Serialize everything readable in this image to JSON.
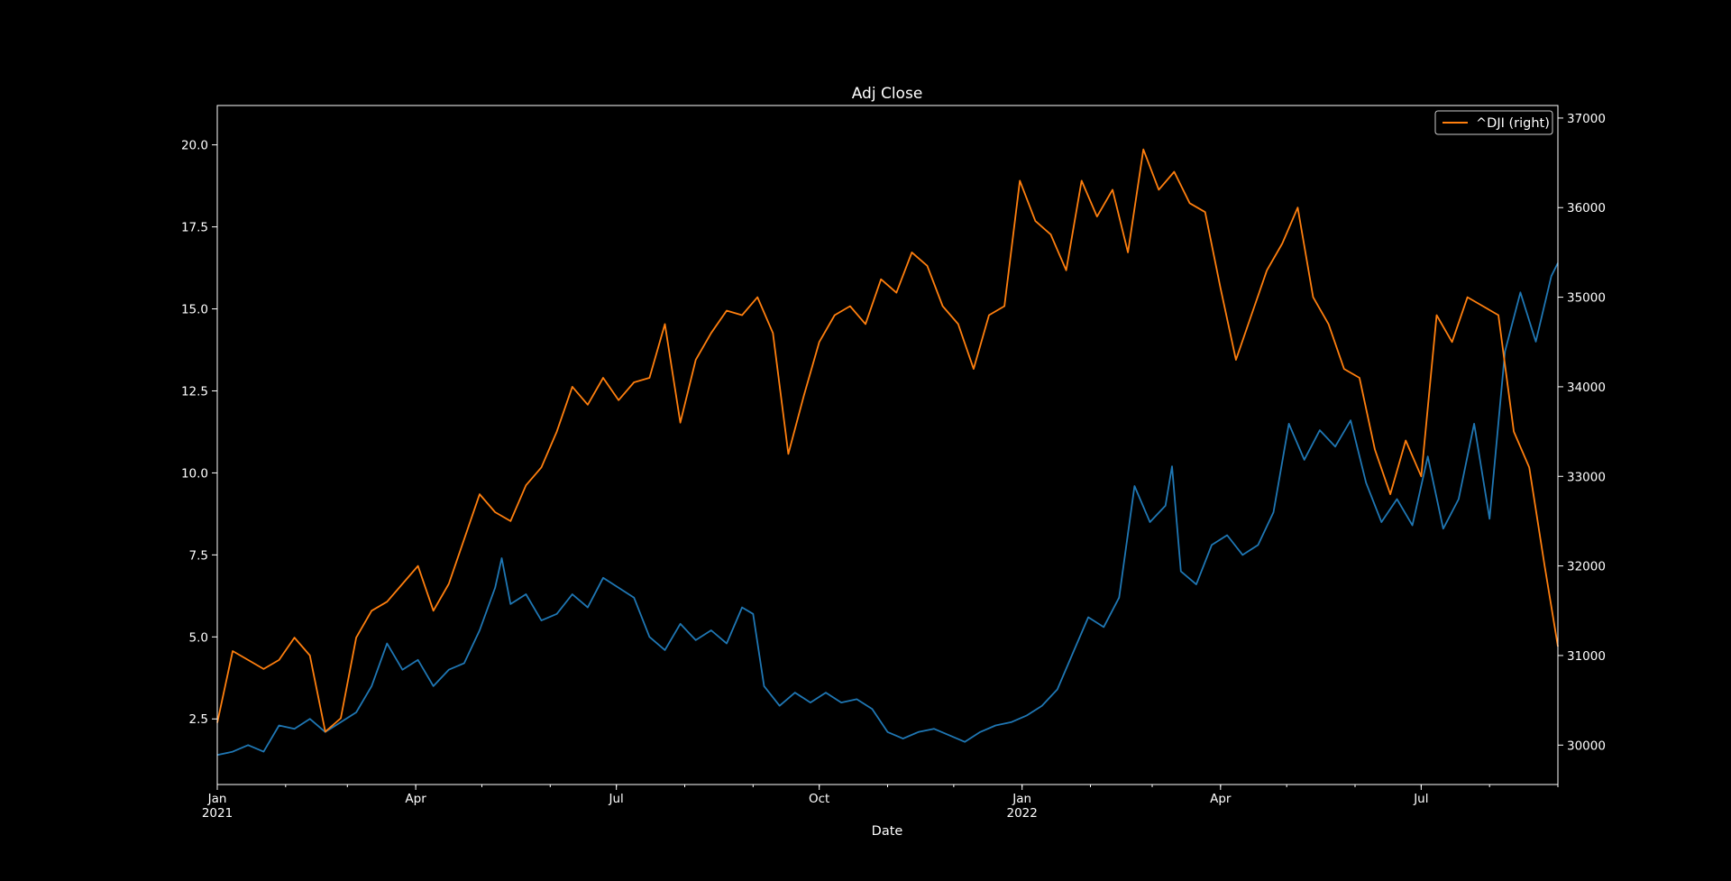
{
  "chart_data": {
    "type": "line",
    "title": "Adj Close",
    "xlabel": "Date",
    "x_range": [
      "2021-01-01",
      "2022-09-01"
    ],
    "x_ticks": [
      {
        "date": "2021-01-01",
        "label": "Jan",
        "sublabel": "2021"
      },
      {
        "date": "2021-04-01",
        "label": "Apr",
        "sublabel": ""
      },
      {
        "date": "2021-07-01",
        "label": "Jul",
        "sublabel": ""
      },
      {
        "date": "2021-10-01",
        "label": "Oct",
        "sublabel": ""
      },
      {
        "date": "2022-01-01",
        "label": "Jan",
        "sublabel": "2022"
      },
      {
        "date": "2022-04-01",
        "label": "Apr",
        "sublabel": ""
      },
      {
        "date": "2022-07-01",
        "label": "Jul",
        "sublabel": ""
      }
    ],
    "left_axis": {
      "ylim": [
        0.5,
        21.2
      ],
      "ticks": [
        2.5,
        5.0,
        7.5,
        10.0,
        12.5,
        15.0,
        17.5,
        20.0
      ],
      "tick_labels": [
        "2.5",
        "5.0",
        "7.5",
        "10.0",
        "12.5",
        "15.0",
        "17.5",
        "20.0"
      ]
    },
    "right_axis": {
      "ylim": [
        29560,
        37140
      ],
      "ticks": [
        30000,
        31000,
        32000,
        33000,
        34000,
        35000,
        36000,
        37000
      ],
      "tick_labels": [
        "30000",
        "31000",
        "32000",
        "33000",
        "34000",
        "35000",
        "36000",
        "37000"
      ]
    },
    "grid": false,
    "legend": {
      "placement": "top-right"
    },
    "series": [
      {
        "axis": "left",
        "color": "#1f77b4",
        "points": [
          [
            "2021-01-01",
            1.4
          ],
          [
            "2021-01-08",
            1.5
          ],
          [
            "2021-01-15",
            1.7
          ],
          [
            "2021-01-22",
            1.5
          ],
          [
            "2021-01-29",
            2.3
          ],
          [
            "2021-02-05",
            2.2
          ],
          [
            "2021-02-12",
            2.5
          ],
          [
            "2021-02-19",
            2.1
          ],
          [
            "2021-02-26",
            2.4
          ],
          [
            "2021-03-05",
            2.7
          ],
          [
            "2021-03-12",
            3.5
          ],
          [
            "2021-03-19",
            4.8
          ],
          [
            "2021-03-26",
            4.0
          ],
          [
            "2021-04-02",
            4.3
          ],
          [
            "2021-04-09",
            3.5
          ],
          [
            "2021-04-16",
            4.0
          ],
          [
            "2021-04-23",
            4.2
          ],
          [
            "2021-04-30",
            5.2
          ],
          [
            "2021-05-07",
            6.5
          ],
          [
            "2021-05-10",
            7.4
          ],
          [
            "2021-05-14",
            6.0
          ],
          [
            "2021-05-21",
            6.3
          ],
          [
            "2021-05-28",
            5.5
          ],
          [
            "2021-06-04",
            5.7
          ],
          [
            "2021-06-11",
            6.3
          ],
          [
            "2021-06-18",
            5.9
          ],
          [
            "2021-06-25",
            6.8
          ],
          [
            "2021-07-02",
            6.5
          ],
          [
            "2021-07-09",
            6.2
          ],
          [
            "2021-07-16",
            5.0
          ],
          [
            "2021-07-23",
            4.6
          ],
          [
            "2021-07-30",
            5.4
          ],
          [
            "2021-08-06",
            4.9
          ],
          [
            "2021-08-13",
            5.2
          ],
          [
            "2021-08-20",
            4.8
          ],
          [
            "2021-08-27",
            5.9
          ],
          [
            "2021-09-01",
            5.7
          ],
          [
            "2021-09-06",
            3.5
          ],
          [
            "2021-09-13",
            2.9
          ],
          [
            "2021-09-20",
            3.3
          ],
          [
            "2021-09-27",
            3.0
          ],
          [
            "2021-10-04",
            3.3
          ],
          [
            "2021-10-11",
            3.0
          ],
          [
            "2021-10-18",
            3.1
          ],
          [
            "2021-10-25",
            2.8
          ],
          [
            "2021-11-01",
            2.1
          ],
          [
            "2021-11-08",
            1.9
          ],
          [
            "2021-11-15",
            2.1
          ],
          [
            "2021-11-22",
            2.2
          ],
          [
            "2021-11-29",
            2.0
          ],
          [
            "2021-12-06",
            1.8
          ],
          [
            "2021-12-13",
            2.1
          ],
          [
            "2021-12-20",
            2.3
          ],
          [
            "2021-12-27",
            2.4
          ],
          [
            "2022-01-03",
            2.6
          ],
          [
            "2022-01-10",
            2.9
          ],
          [
            "2022-01-17",
            3.4
          ],
          [
            "2022-01-24",
            4.5
          ],
          [
            "2022-01-31",
            5.6
          ],
          [
            "2022-02-07",
            5.3
          ],
          [
            "2022-02-14",
            6.2
          ],
          [
            "2022-02-21",
            9.6
          ],
          [
            "2022-02-28",
            8.5
          ],
          [
            "2022-03-07",
            9.0
          ],
          [
            "2022-03-10",
            10.2
          ],
          [
            "2022-03-14",
            7.0
          ],
          [
            "2022-03-21",
            6.6
          ],
          [
            "2022-03-28",
            7.8
          ],
          [
            "2022-04-04",
            8.1
          ],
          [
            "2022-04-11",
            7.5
          ],
          [
            "2022-04-18",
            7.8
          ],
          [
            "2022-04-25",
            8.8
          ],
          [
            "2022-05-02",
            11.5
          ],
          [
            "2022-05-09",
            10.4
          ],
          [
            "2022-05-16",
            11.3
          ],
          [
            "2022-05-23",
            10.8
          ],
          [
            "2022-05-30",
            11.6
          ],
          [
            "2022-06-06",
            9.7
          ],
          [
            "2022-06-13",
            8.5
          ],
          [
            "2022-06-20",
            9.2
          ],
          [
            "2022-06-27",
            8.4
          ],
          [
            "2022-07-04",
            10.5
          ],
          [
            "2022-07-11",
            8.3
          ],
          [
            "2022-07-18",
            9.2
          ],
          [
            "2022-07-25",
            11.5
          ],
          [
            "2022-08-01",
            8.6
          ],
          [
            "2022-08-08",
            13.7
          ],
          [
            "2022-08-15",
            15.5
          ],
          [
            "2022-08-22",
            14.0
          ],
          [
            "2022-08-29",
            16.0
          ],
          [
            "2022-09-01",
            16.4
          ]
        ]
      },
      {
        "axis": "right",
        "name": "^DJI (right)",
        "color": "#ff7f0e",
        "points": [
          [
            "2021-01-01",
            30250
          ],
          [
            "2021-01-08",
            31050
          ],
          [
            "2021-01-15",
            30950
          ],
          [
            "2021-01-22",
            30850
          ],
          [
            "2021-01-29",
            30950
          ],
          [
            "2021-02-05",
            31200
          ],
          [
            "2021-02-12",
            31000
          ],
          [
            "2021-02-19",
            30150
          ],
          [
            "2021-02-26",
            30300
          ],
          [
            "2021-03-05",
            31200
          ],
          [
            "2021-03-12",
            31500
          ],
          [
            "2021-03-19",
            31600
          ],
          [
            "2021-03-26",
            31800
          ],
          [
            "2021-04-02",
            32000
          ],
          [
            "2021-04-09",
            31500
          ],
          [
            "2021-04-16",
            31800
          ],
          [
            "2021-04-23",
            32300
          ],
          [
            "2021-04-30",
            32800
          ],
          [
            "2021-05-07",
            32600
          ],
          [
            "2021-05-14",
            32500
          ],
          [
            "2021-05-21",
            32900
          ],
          [
            "2021-05-28",
            33100
          ],
          [
            "2021-06-04",
            33500
          ],
          [
            "2021-06-11",
            34000
          ],
          [
            "2021-06-18",
            33800
          ],
          [
            "2021-06-25",
            34100
          ],
          [
            "2021-07-02",
            33850
          ],
          [
            "2021-07-09",
            34050
          ],
          [
            "2021-07-16",
            34100
          ],
          [
            "2021-07-23",
            34700
          ],
          [
            "2021-07-30",
            33600
          ],
          [
            "2021-08-06",
            34300
          ],
          [
            "2021-08-13",
            34600
          ],
          [
            "2021-08-20",
            34850
          ],
          [
            "2021-08-27",
            34800
          ],
          [
            "2021-09-03",
            35000
          ],
          [
            "2021-09-10",
            34600
          ],
          [
            "2021-09-17",
            33250
          ],
          [
            "2021-09-24",
            33900
          ],
          [
            "2021-10-01",
            34500
          ],
          [
            "2021-10-08",
            34800
          ],
          [
            "2021-10-15",
            34900
          ],
          [
            "2021-10-22",
            34700
          ],
          [
            "2021-10-29",
            35200
          ],
          [
            "2021-11-05",
            35050
          ],
          [
            "2021-11-12",
            35500
          ],
          [
            "2021-11-19",
            35350
          ],
          [
            "2021-11-26",
            34900
          ],
          [
            "2021-12-03",
            34700
          ],
          [
            "2021-12-10",
            34200
          ],
          [
            "2021-12-17",
            34800
          ],
          [
            "2021-12-24",
            34900
          ],
          [
            "2021-12-31",
            36300
          ],
          [
            "2022-01-07",
            35850
          ],
          [
            "2022-01-14",
            35700
          ],
          [
            "2022-01-21",
            35300
          ],
          [
            "2022-01-28",
            36300
          ],
          [
            "2022-02-04",
            35900
          ],
          [
            "2022-02-11",
            36200
          ],
          [
            "2022-02-18",
            35500
          ],
          [
            "2022-02-25",
            36650
          ],
          [
            "2022-03-04",
            36200
          ],
          [
            "2022-03-11",
            36400
          ],
          [
            "2022-03-18",
            36050
          ],
          [
            "2022-03-25",
            35950
          ],
          [
            "2022-04-01",
            35100
          ],
          [
            "2022-04-08",
            34300
          ],
          [
            "2022-04-15",
            34800
          ],
          [
            "2022-04-22",
            35300
          ],
          [
            "2022-04-29",
            35600
          ],
          [
            "2022-05-06",
            36000
          ],
          [
            "2022-05-13",
            35000
          ],
          [
            "2022-05-20",
            34700
          ],
          [
            "2022-05-27",
            34200
          ],
          [
            "2022-06-03",
            34100
          ],
          [
            "2022-06-10",
            33300
          ],
          [
            "2022-06-17",
            32800
          ],
          [
            "2022-06-24",
            33400
          ],
          [
            "2022-07-01",
            33000
          ],
          [
            "2022-07-08",
            34800
          ],
          [
            "2022-07-15",
            34500
          ],
          [
            "2022-07-22",
            35000
          ],
          [
            "2022-07-29",
            34900
          ],
          [
            "2022-08-05",
            34800
          ],
          [
            "2022-08-12",
            33500
          ],
          [
            "2022-08-19",
            33100
          ],
          [
            "2022-08-26",
            32000
          ],
          [
            "2022-09-01",
            31100
          ]
        ]
      }
    ]
  }
}
